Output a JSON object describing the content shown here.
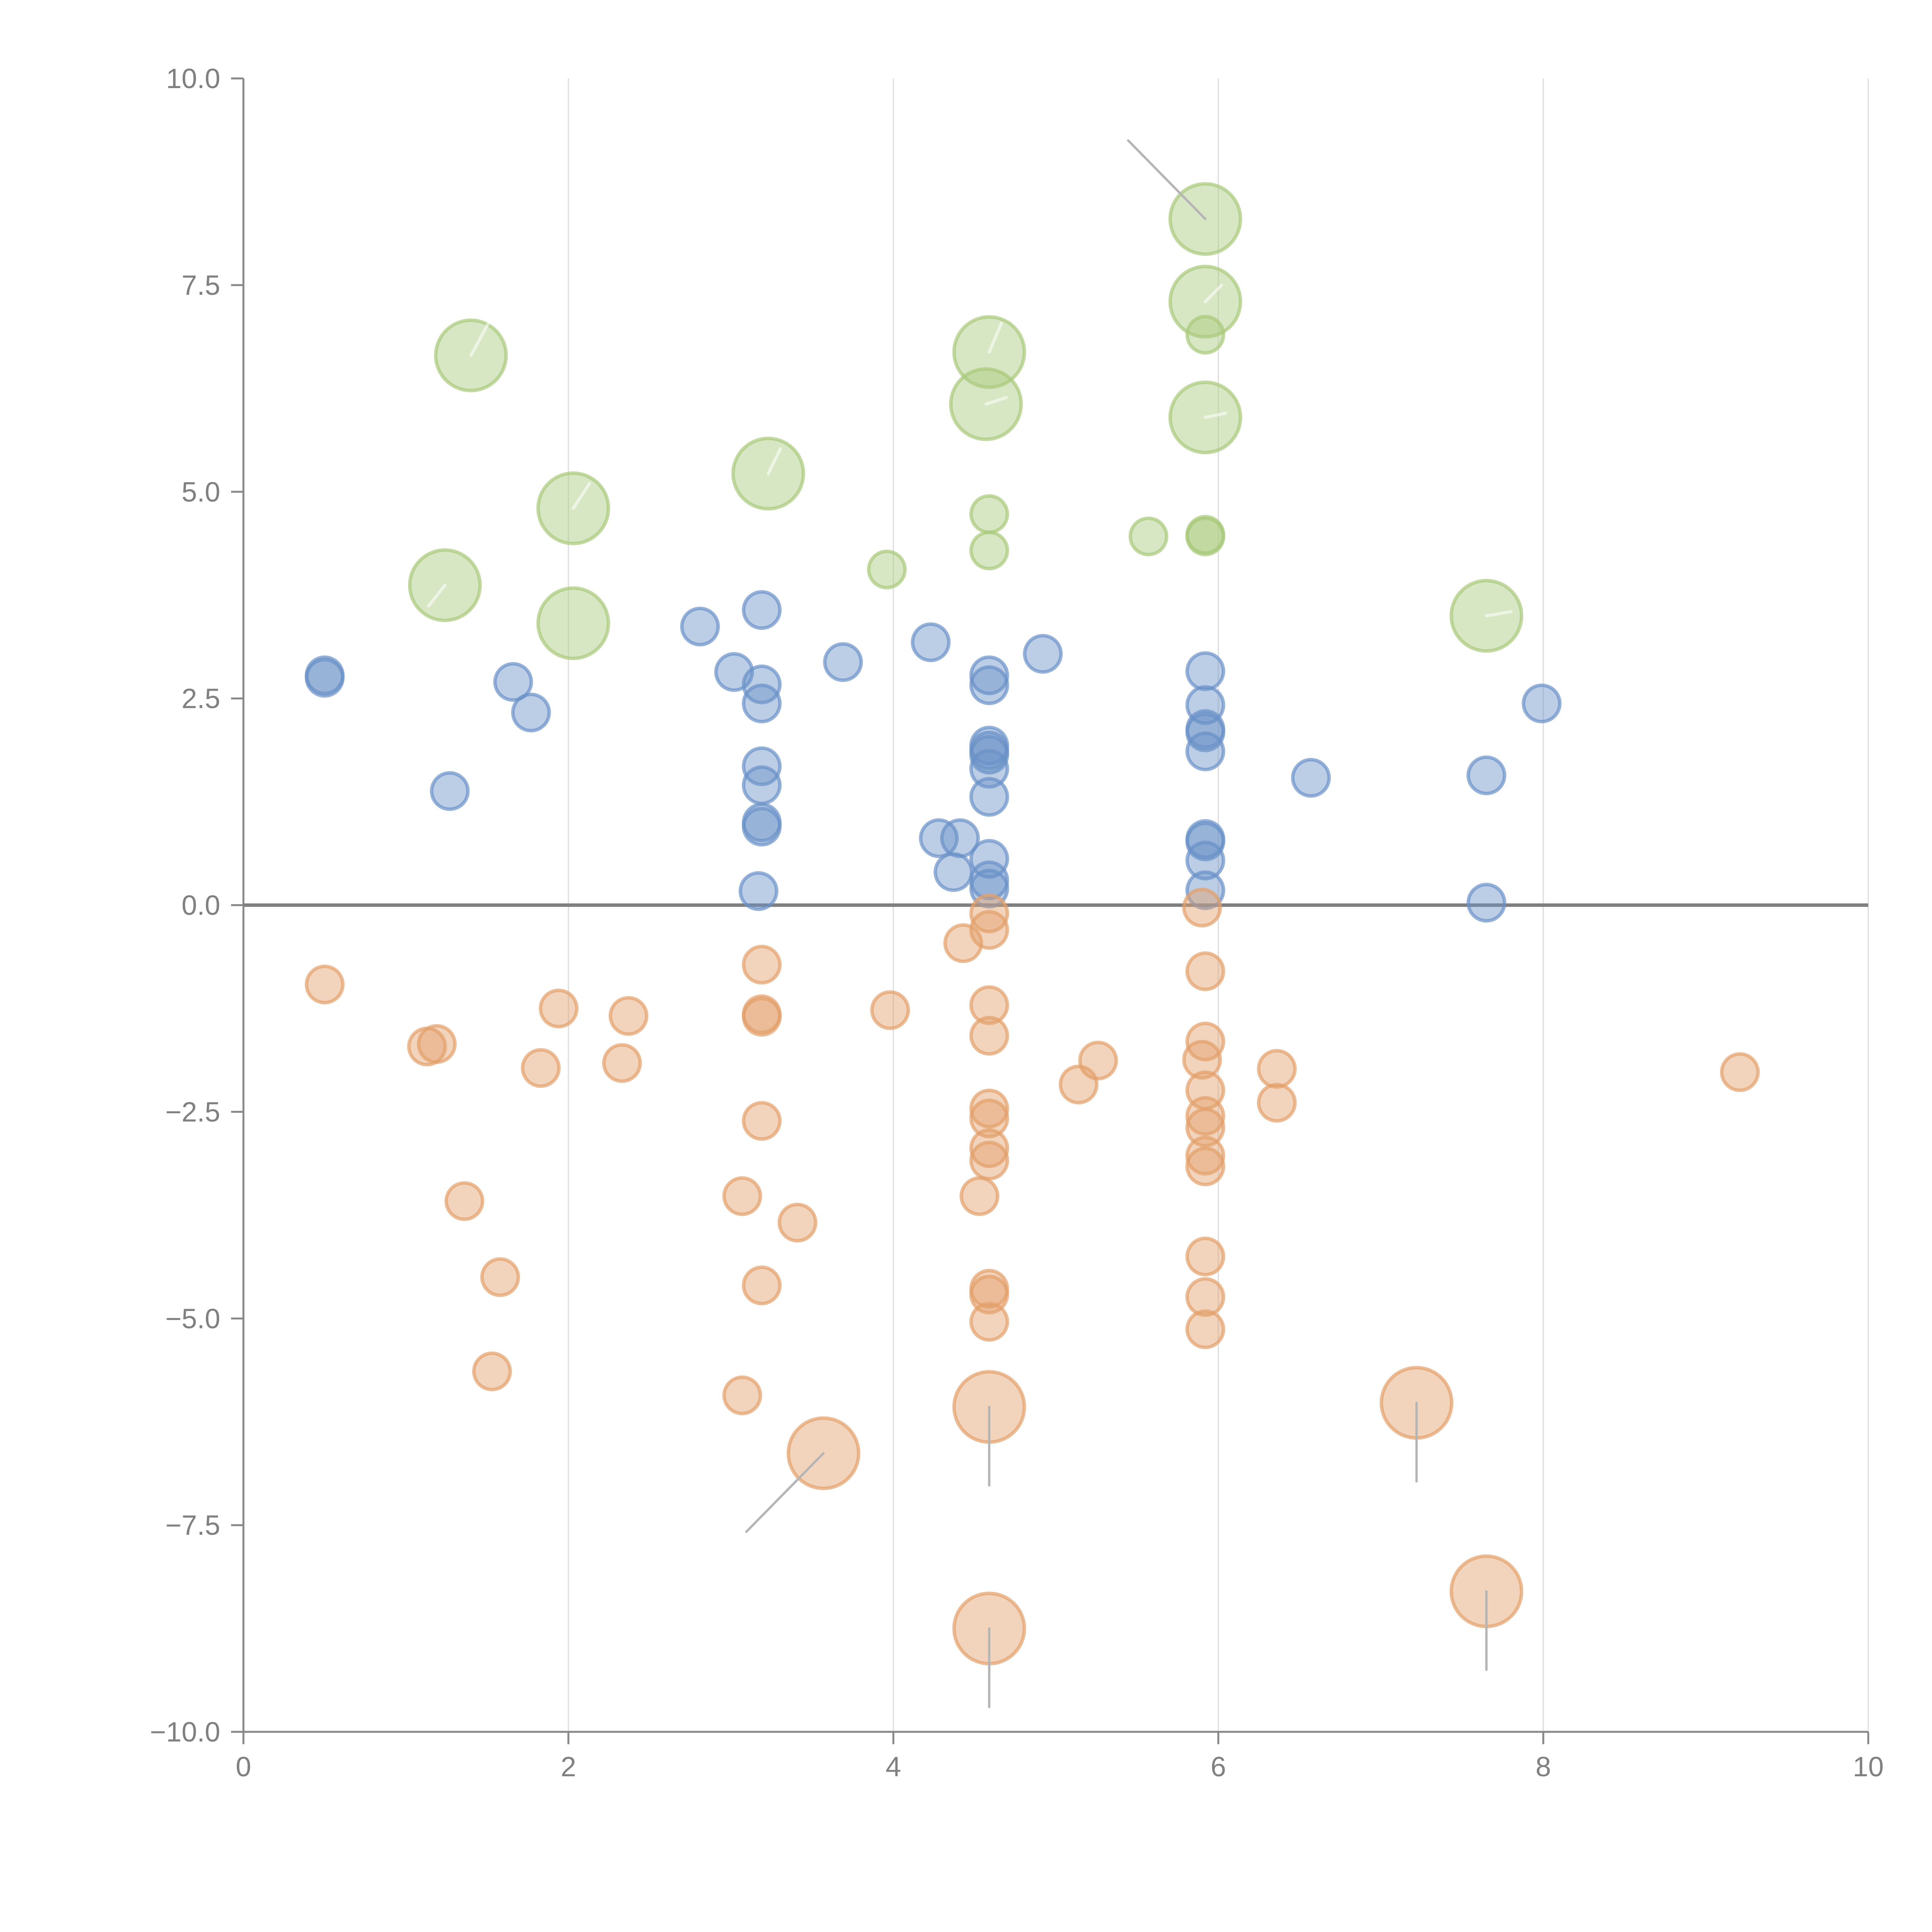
{
  "chart_data": {
    "type": "scatter",
    "title": "",
    "xlabel": "",
    "ylabel": "",
    "xlim": [
      0,
      10
    ],
    "ylim": [
      -10,
      10
    ],
    "x_ticks": [
      0,
      2,
      4,
      6,
      8,
      10
    ],
    "x_tick_labels": [
      "0",
      "2",
      "4",
      "6",
      "8",
      "10"
    ],
    "y_ticks": [
      -10,
      -7.5,
      -5,
      -2.5,
      0,
      2.5,
      5,
      7.5,
      10
    ],
    "y_tick_labels": [
      "−10.0",
      "−7.5",
      "−5.0",
      "−2.5",
      "0.0",
      "2.5",
      "5.0",
      "7.5",
      "10.0"
    ],
    "grid": "vertical",
    "zero_line": true,
    "legend": "none",
    "size_levels": {
      "small": 1,
      "large": 2
    },
    "series": [
      {
        "name": "green",
        "color": "#a9c97a",
        "points": [
          {
            "x": 1.4,
            "y": 6.65,
            "size": "large",
            "leader": [
              0.25,
              0.45
            ]
          },
          {
            "x": 2.03,
            "y": 4.8,
            "size": "large",
            "leader": [
              0.2,
              0.3
            ]
          },
          {
            "x": 1.24,
            "y": 3.87,
            "size": "large",
            "leader": [
              -0.2,
              -0.25
            ]
          },
          {
            "x": 2.03,
            "y": 3.41,
            "size": "large"
          },
          {
            "x": 3.23,
            "y": 5.22,
            "size": "large",
            "leader": [
              0.15,
              0.3
            ]
          },
          {
            "x": 4.59,
            "y": 6.69,
            "size": "large",
            "leader": [
              0.15,
              0.35
            ]
          },
          {
            "x": 4.57,
            "y": 6.06,
            "size": "large",
            "leader": [
              0.25,
              0.08
            ]
          },
          {
            "x": 5.92,
            "y": 8.3,
            "size": "large",
            "leader": [
              -0.95,
              0.95
            ],
            "leader_visible": true
          },
          {
            "x": 5.92,
            "y": 7.3,
            "size": "large",
            "leader": [
              0.2,
              0.2
            ]
          },
          {
            "x": 5.92,
            "y": 5.9,
            "size": "large",
            "leader": [
              0.25,
              0.05
            ]
          },
          {
            "x": 7.65,
            "y": 3.5,
            "size": "large",
            "leader": [
              0.3,
              0.05
            ]
          },
          {
            "x": 5.92,
            "y": 6.9,
            "size": "small"
          },
          {
            "x": 4.59,
            "y": 4.73,
            "size": "small"
          },
          {
            "x": 4.59,
            "y": 4.29,
            "size": "small"
          },
          {
            "x": 3.96,
            "y": 4.06,
            "size": "small"
          },
          {
            "x": 5.57,
            "y": 4.46,
            "size": "small"
          },
          {
            "x": 5.92,
            "y": 4.46,
            "size": "small"
          },
          {
            "x": 5.92,
            "y": 4.48,
            "size": "small"
          }
        ]
      },
      {
        "name": "blue",
        "color": "#6a92c8",
        "points": [
          {
            "x": 0.5,
            "y": 2.78,
            "size": "small"
          },
          {
            "x": 0.5,
            "y": 2.75,
            "size": "small"
          },
          {
            "x": 1.27,
            "y": 1.38,
            "size": "small"
          },
          {
            "x": 1.66,
            "y": 2.7,
            "size": "small"
          },
          {
            "x": 1.77,
            "y": 2.33,
            "size": "small"
          },
          {
            "x": 2.81,
            "y": 3.37,
            "size": "small"
          },
          {
            "x": 3.02,
            "y": 2.82,
            "size": "small"
          },
          {
            "x": 3.19,
            "y": 3.57,
            "size": "small"
          },
          {
            "x": 3.19,
            "y": 2.67,
            "size": "small"
          },
          {
            "x": 3.19,
            "y": 2.44,
            "size": "small"
          },
          {
            "x": 3.19,
            "y": 1.68,
            "size": "small"
          },
          {
            "x": 3.19,
            "y": 1.45,
            "size": "small"
          },
          {
            "x": 3.19,
            "y": 1.0,
            "size": "small"
          },
          {
            "x": 3.19,
            "y": 0.95,
            "size": "small"
          },
          {
            "x": 3.17,
            "y": 0.17,
            "size": "small"
          },
          {
            "x": 3.69,
            "y": 2.94,
            "size": "small"
          },
          {
            "x": 4.23,
            "y": 3.18,
            "size": "small"
          },
          {
            "x": 4.28,
            "y": 0.81,
            "size": "small"
          },
          {
            "x": 4.41,
            "y": 0.81,
            "size": "small"
          },
          {
            "x": 4.37,
            "y": 0.4,
            "size": "small"
          },
          {
            "x": 4.59,
            "y": 2.78,
            "size": "small"
          },
          {
            "x": 4.59,
            "y": 2.66,
            "size": "small"
          },
          {
            "x": 4.59,
            "y": 1.93,
            "size": "small"
          },
          {
            "x": 4.59,
            "y": 1.87,
            "size": "small"
          },
          {
            "x": 4.59,
            "y": 1.82,
            "size": "small"
          },
          {
            "x": 4.59,
            "y": 1.65,
            "size": "small"
          },
          {
            "x": 4.59,
            "y": 1.31,
            "size": "small"
          },
          {
            "x": 4.59,
            "y": 0.56,
            "size": "small"
          },
          {
            "x": 4.59,
            "y": 0.3,
            "size": "small"
          },
          {
            "x": 4.59,
            "y": 0.2,
            "size": "small"
          },
          {
            "x": 4.92,
            "y": 3.04,
            "size": "small"
          },
          {
            "x": 5.92,
            "y": 2.83,
            "size": "small"
          },
          {
            "x": 5.92,
            "y": 2.42,
            "size": "small"
          },
          {
            "x": 5.92,
            "y": 2.13,
            "size": "small"
          },
          {
            "x": 5.92,
            "y": 2.09,
            "size": "small"
          },
          {
            "x": 5.92,
            "y": 1.86,
            "size": "small"
          },
          {
            "x": 5.92,
            "y": 0.8,
            "size": "small"
          },
          {
            "x": 5.92,
            "y": 0.77,
            "size": "small"
          },
          {
            "x": 5.92,
            "y": 0.54,
            "size": "small"
          },
          {
            "x": 5.92,
            "y": 0.18,
            "size": "small"
          },
          {
            "x": 6.57,
            "y": 1.54,
            "size": "small"
          },
          {
            "x": 7.65,
            "y": 1.57,
            "size": "small"
          },
          {
            "x": 7.65,
            "y": 0.03,
            "size": "small"
          },
          {
            "x": 7.99,
            "y": 2.44,
            "size": "small"
          }
        ]
      },
      {
        "name": "orange",
        "color": "#e3a06a",
        "points": [
          {
            "x": 0.5,
            "y": -0.96,
            "size": "small"
          },
          {
            "x": 1.13,
            "y": -1.71,
            "size": "small"
          },
          {
            "x": 1.19,
            "y": -1.68,
            "size": "small"
          },
          {
            "x": 1.36,
            "y": -3.58,
            "size": "small"
          },
          {
            "x": 1.58,
            "y": -4.5,
            "size": "small"
          },
          {
            "x": 1.53,
            "y": -5.64,
            "size": "small"
          },
          {
            "x": 1.83,
            "y": -1.97,
            "size": "small"
          },
          {
            "x": 1.94,
            "y": -1.25,
            "size": "small"
          },
          {
            "x": 2.33,
            "y": -1.91,
            "size": "small"
          },
          {
            "x": 2.37,
            "y": -1.34,
            "size": "small"
          },
          {
            "x": 3.07,
            "y": -3.52,
            "size": "small"
          },
          {
            "x": 3.07,
            "y": -5.93,
            "size": "small"
          },
          {
            "x": 3.19,
            "y": -0.72,
            "size": "small"
          },
          {
            "x": 3.19,
            "y": -1.32,
            "size": "small"
          },
          {
            "x": 3.19,
            "y": -1.35,
            "size": "small"
          },
          {
            "x": 3.19,
            "y": -2.61,
            "size": "small"
          },
          {
            "x": 3.19,
            "y": -4.6,
            "size": "small"
          },
          {
            "x": 3.41,
            "y": -3.84,
            "size": "small"
          },
          {
            "x": 3.98,
            "y": -1.27,
            "size": "small"
          },
          {
            "x": 4.43,
            "y": -0.46,
            "size": "small"
          },
          {
            "x": 4.59,
            "y": -0.1,
            "size": "small"
          },
          {
            "x": 4.59,
            "y": -0.3,
            "size": "small"
          },
          {
            "x": 4.59,
            "y": -1.21,
            "size": "small"
          },
          {
            "x": 4.59,
            "y": -1.58,
            "size": "small"
          },
          {
            "x": 4.59,
            "y": -2.46,
            "size": "small"
          },
          {
            "x": 4.59,
            "y": -2.58,
            "size": "small"
          },
          {
            "x": 4.59,
            "y": -2.94,
            "size": "small"
          },
          {
            "x": 4.59,
            "y": -3.09,
            "size": "small"
          },
          {
            "x": 4.53,
            "y": -3.52,
            "size": "small"
          },
          {
            "x": 4.59,
            "y": -4.64,
            "size": "small"
          },
          {
            "x": 4.59,
            "y": -4.71,
            "size": "small"
          },
          {
            "x": 4.59,
            "y": -5.04,
            "size": "small"
          },
          {
            "x": 5.14,
            "y": -2.17,
            "size": "small"
          },
          {
            "x": 5.26,
            "y": -1.88,
            "size": "small"
          },
          {
            "x": 5.9,
            "y": -0.03,
            "size": "small"
          },
          {
            "x": 5.92,
            "y": -0.8,
            "size": "small"
          },
          {
            "x": 5.92,
            "y": -1.65,
            "size": "small"
          },
          {
            "x": 5.9,
            "y": -1.87,
            "size": "small"
          },
          {
            "x": 5.92,
            "y": -2.24,
            "size": "small"
          },
          {
            "x": 5.92,
            "y": -2.55,
            "size": "small"
          },
          {
            "x": 5.92,
            "y": -2.69,
            "size": "small"
          },
          {
            "x": 5.92,
            "y": -3.03,
            "size": "small"
          },
          {
            "x": 5.92,
            "y": -3.16,
            "size": "small"
          },
          {
            "x": 5.92,
            "y": -4.25,
            "size": "small"
          },
          {
            "x": 5.92,
            "y": -4.74,
            "size": "small"
          },
          {
            "x": 5.92,
            "y": -5.13,
            "size": "small"
          },
          {
            "x": 6.36,
            "y": -1.98,
            "size": "small"
          },
          {
            "x": 6.36,
            "y": -2.39,
            "size": "small"
          },
          {
            "x": 9.21,
            "y": -2.02,
            "size": "small"
          },
          {
            "x": 3.57,
            "y": -6.63,
            "size": "large",
            "leader": [
              -0.95,
              -0.95
            ],
            "leader_visible": true
          },
          {
            "x": 4.59,
            "y": -6.07,
            "size": "large",
            "leader": [
              0,
              -0.95
            ],
            "leader_visible": true
          },
          {
            "x": 7.22,
            "y": -6.02,
            "size": "large",
            "leader": [
              0,
              -0.95
            ],
            "leader_visible": true
          },
          {
            "x": 7.65,
            "y": -8.3,
            "size": "large",
            "leader": [
              0,
              -0.95
            ],
            "leader_visible": true
          },
          {
            "x": 4.59,
            "y": -8.75,
            "size": "large",
            "leader": [
              0,
              -0.95
            ],
            "leader_visible": true
          }
        ]
      }
    ]
  }
}
